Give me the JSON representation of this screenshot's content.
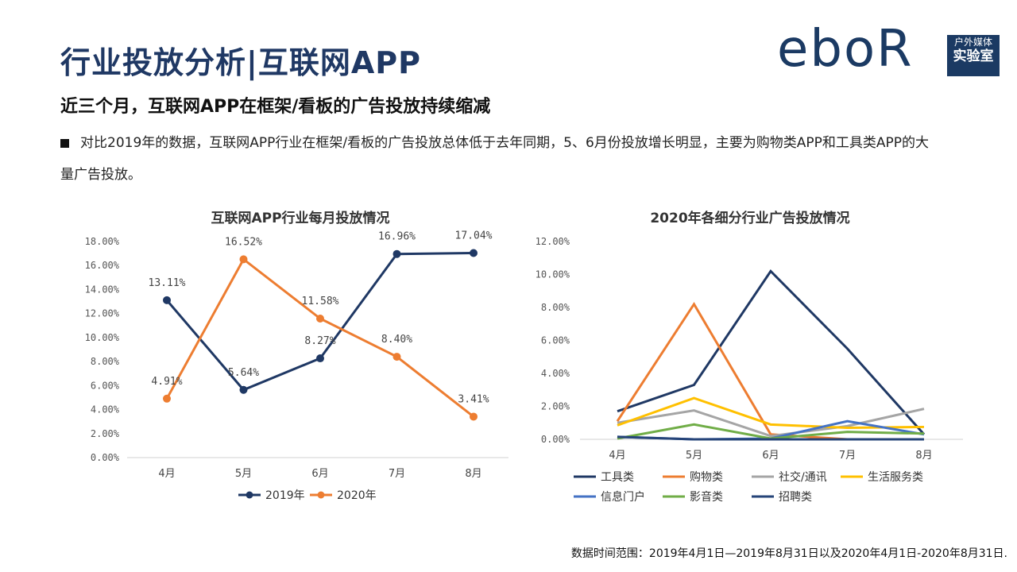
{
  "header": {
    "title": "行业投放分析|互联网APP",
    "subtitle": "近三个月，互联网APP在框架/看板的广告投放持续缩减",
    "bullet": "对比2019年的数据，互联网APP行业在框架/看板的广告投放总体低于去年同期，5、6月份投放增长明显，主要为购物类APP和工具类APP的大量广告投放。"
  },
  "logo": {
    "word": "eboR",
    "line1": "户外媒体",
    "line2": "实验室"
  },
  "footer": "数据时间范围：2019年4月1日—2019年8月31日以及2020年4月1日-2020年8月31日.",
  "colors": {
    "navy": "#1f3864",
    "orange": "#ed7d31"
  },
  "chart_data": [
    {
      "type": "line",
      "title": "互联网APP行业每月投放情况",
      "categories": [
        "4月",
        "5月",
        "6月",
        "7月",
        "8月"
      ],
      "ylim": [
        0,
        18
      ],
      "yticks": [
        "0.00%",
        "2.00%",
        "4.00%",
        "6.00%",
        "8.00%",
        "10.00%",
        "12.00%",
        "14.00%",
        "16.00%",
        "18.00%"
      ],
      "legend": "bottom",
      "series": [
        {
          "name": "2019年",
          "color": "#1f3864",
          "values": [
            13.11,
            5.64,
            8.27,
            16.96,
            17.04
          ],
          "labels": [
            "13.11%",
            "5.64%",
            "8.27%",
            "16.96%",
            "17.04%"
          ]
        },
        {
          "name": "2020年",
          "color": "#ed7d31",
          "values": [
            4.91,
            16.52,
            11.58,
            8.4,
            3.41
          ],
          "labels": [
            "4.91%",
            "16.52%",
            "11.58%",
            "8.40%",
            "3.41%"
          ]
        }
      ]
    },
    {
      "type": "line",
      "title": "2020年各细分行业广告投放情况",
      "categories": [
        "4月",
        "5月",
        "6月",
        "7月",
        "8月"
      ],
      "ylim": [
        0,
        12
      ],
      "yticks": [
        "0.00%",
        "2.00%",
        "4.00%",
        "6.00%",
        "8.00%",
        "10.00%",
        "12.00%"
      ],
      "legend": "bottom",
      "series": [
        {
          "name": "工具类",
          "color": "#1f3864",
          "values": [
            1.7,
            3.3,
            10.2,
            5.5,
            0.3
          ]
        },
        {
          "name": "购物类",
          "color": "#ed7d31",
          "values": [
            1.1,
            8.2,
            0.3,
            0.0,
            0.0
          ]
        },
        {
          "name": "社交/通讯",
          "color": "#a5a5a5",
          "values": [
            1.0,
            1.75,
            0.2,
            0.8,
            1.85
          ]
        },
        {
          "name": "生活服务类",
          "color": "#ffc000",
          "values": [
            0.85,
            2.5,
            0.9,
            0.7,
            0.75
          ]
        },
        {
          "name": "信息门户",
          "color": "#4472c4",
          "values": [
            0.15,
            0.0,
            0.05,
            1.1,
            0.3
          ]
        },
        {
          "name": "影音类",
          "color": "#70ad47",
          "values": [
            0.05,
            0.9,
            0.05,
            0.45,
            0.35
          ]
        },
        {
          "name": "招聘类",
          "color": "#264478",
          "values": [
            0.15,
            0.0,
            0.0,
            0.0,
            0.0
          ]
        }
      ]
    }
  ]
}
